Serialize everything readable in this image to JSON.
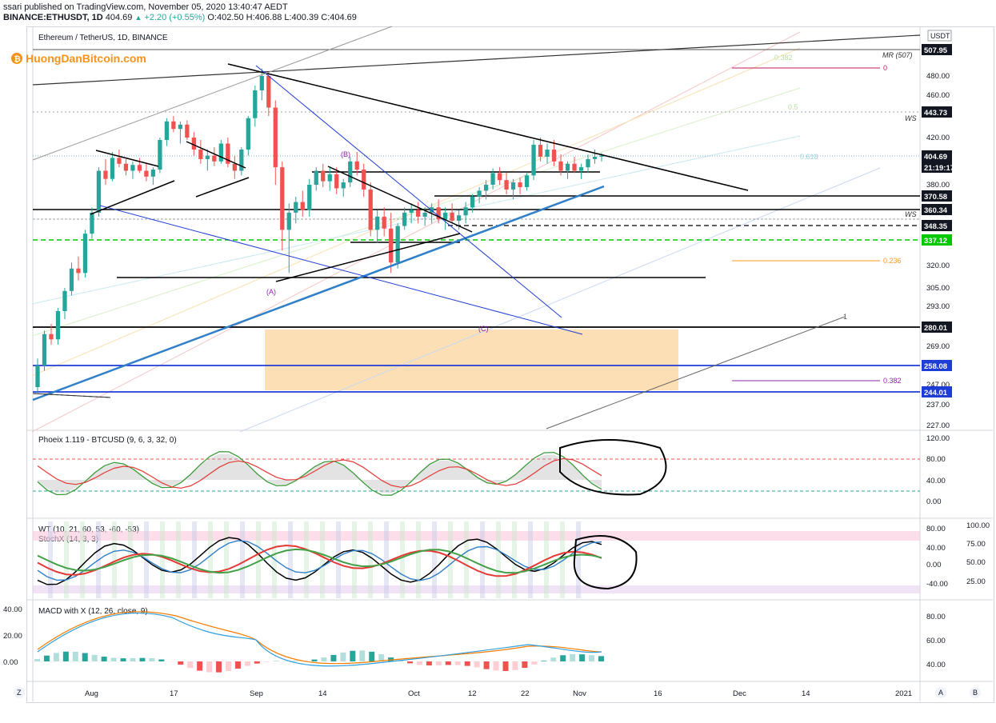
{
  "header": {
    "publisher_line": "ssari published on TradingView.com, November 05, 2020 13:40:47 AEDT",
    "symbol": "BINANCE:ETHUSDT, 1D",
    "last": "404.69",
    "change": "+2.20 (+0.55%)",
    "ohlc": "O:402.50 H:406.88 L:400.39 C:404.69"
  },
  "chart_title": "Ethereum / TetherUS, 1D, BINANCE",
  "logo": "HuongDanBitcoin.com",
  "currency": "USDT",
  "colors": {
    "up": "#26a69a",
    "down": "#ef5350",
    "blue": "#1e3cd6",
    "orange_zone": "#fcd9a8",
    "trend_blue": "#2f7fc9",
    "green_dash": "#00c800"
  },
  "chart_data": {
    "type": "candlestick",
    "title": "Ethereum / TetherUS, 1D, BINANCE",
    "x_labels": [
      "Aug",
      "17",
      "Sep",
      "14",
      "Oct",
      "12",
      "22",
      "Nov",
      "16",
      "Dec",
      "14",
      "2021"
    ],
    "y_ticks": [
      "480.00",
      "460.00",
      "420.00",
      "380.00",
      "320.00",
      "305.00",
      "293.00",
      "269.00",
      "247.00",
      "237.00",
      "227.00"
    ],
    "price_tags": [
      {
        "label": "507.95",
        "kind": "dark"
      },
      {
        "label": "443.73",
        "kind": "dark"
      },
      {
        "label": "404.69",
        "kind": "dark"
      },
      {
        "label": "21:19:17",
        "kind": "dark"
      },
      {
        "label": "370.58",
        "kind": "dark"
      },
      {
        "label": "360.34",
        "kind": "dark"
      },
      {
        "label": "348.35",
        "kind": "dark"
      },
      {
        "label": "337.12",
        "kind": "green"
      },
      {
        "label": "280.01",
        "kind": "dark"
      },
      {
        "label": "258.08",
        "kind": "blue"
      },
      {
        "label": "244.01",
        "kind": "blue"
      }
    ],
    "annotations": [
      "MR (507)",
      "WS",
      "WS",
      "0",
      "0.382",
      "0.5",
      "0.618",
      "0.236",
      "0.382",
      "1",
      "(A)",
      "(B)",
      "(C)"
    ],
    "candles": [
      [
        246,
        262,
        243,
        258
      ],
      [
        258,
        278,
        255,
        276
      ],
      [
        276,
        282,
        270,
        273
      ],
      [
        273,
        292,
        270,
        290
      ],
      [
        290,
        305,
        285,
        303
      ],
      [
        303,
        322,
        300,
        318
      ],
      [
        318,
        326,
        310,
        315
      ],
      [
        315,
        345,
        312,
        342
      ],
      [
        342,
        362,
        338,
        358
      ],
      [
        358,
        395,
        355,
        392
      ],
      [
        392,
        402,
        380,
        385
      ],
      [
        385,
        408,
        383,
        403
      ],
      [
        403,
        410,
        395,
        398
      ],
      [
        398,
        402,
        388,
        392
      ],
      [
        392,
        400,
        385,
        397
      ],
      [
        397,
        403,
        390,
        392
      ],
      [
        392,
        398,
        383,
        387
      ],
      [
        387,
        395,
        380,
        393
      ],
      [
        393,
        420,
        390,
        418
      ],
      [
        418,
        438,
        413,
        435
      ],
      [
        435,
        440,
        425,
        428
      ],
      [
        428,
        435,
        415,
        432
      ],
      [
        432,
        436,
        418,
        420
      ],
      [
        420,
        425,
        405,
        410
      ],
      [
        410,
        418,
        398,
        402
      ],
      [
        402,
        410,
        392,
        405
      ],
      [
        405,
        412,
        396,
        400
      ],
      [
        400,
        418,
        398,
        415
      ],
      [
        415,
        420,
        395,
        398
      ],
      [
        398,
        405,
        385,
        392
      ],
      [
        392,
        412,
        388,
        410
      ],
      [
        410,
        440,
        405,
        438
      ],
      [
        438,
        470,
        430,
        465
      ],
      [
        465,
        488,
        455,
        480
      ],
      [
        480,
        485,
        440,
        448
      ],
      [
        448,
        455,
        380,
        395
      ],
      [
        395,
        400,
        330,
        345
      ],
      [
        345,
        365,
        315,
        358
      ],
      [
        358,
        370,
        350,
        366
      ],
      [
        366,
        375,
        355,
        360
      ],
      [
        360,
        385,
        355,
        380
      ],
      [
        380,
        395,
        375,
        392
      ],
      [
        392,
        398,
        378,
        383
      ],
      [
        383,
        395,
        375,
        389
      ],
      [
        389,
        395,
        372,
        377
      ],
      [
        377,
        385,
        370,
        382
      ],
      [
        382,
        404,
        378,
        400
      ],
      [
        400,
        408,
        388,
        393
      ],
      [
        393,
        398,
        370,
        376
      ],
      [
        376,
        382,
        340,
        345
      ],
      [
        345,
        360,
        335,
        355
      ],
      [
        355,
        362,
        340,
        346
      ],
      [
        346,
        358,
        315,
        322
      ],
      [
        322,
        350,
        318,
        348
      ],
      [
        348,
        362,
        345,
        358
      ],
      [
        358,
        365,
        350,
        360
      ],
      [
        360,
        366,
        350,
        355
      ],
      [
        355,
        362,
        348,
        358
      ],
      [
        358,
        365,
        350,
        362
      ],
      [
        362,
        368,
        350,
        353
      ],
      [
        353,
        362,
        345,
        358
      ],
      [
        358,
        365,
        350,
        352
      ],
      [
        352,
        360,
        345,
        356
      ],
      [
        356,
        366,
        350,
        362
      ],
      [
        362,
        372,
        358,
        370
      ],
      [
        370,
        378,
        365,
        375
      ],
      [
        375,
        384,
        368,
        380
      ],
      [
        380,
        394,
        376,
        390
      ],
      [
        390,
        395,
        380,
        384
      ],
      [
        384,
        390,
        372,
        376
      ],
      [
        376,
        385,
        368,
        382
      ],
      [
        382,
        386,
        372,
        378
      ],
      [
        378,
        390,
        375,
        388
      ],
      [
        388,
        418,
        384,
        414
      ],
      [
        414,
        420,
        400,
        404
      ],
      [
        404,
        415,
        398,
        410
      ],
      [
        410,
        418,
        396,
        400
      ],
      [
        400,
        406,
        388,
        392
      ],
      [
        392,
        400,
        385,
        398
      ],
      [
        398,
        404,
        390,
        392
      ],
      [
        392,
        398,
        385,
        395
      ],
      [
        395,
        406,
        390,
        402
      ],
      [
        402,
        410,
        398,
        404
      ],
      [
        404,
        407,
        400,
        405
      ]
    ],
    "indicators": [
      {
        "name": "Phoeix 1.119 - BTCUSD (9, 6, 3, 32, 0)",
        "scale": [
          "120.00",
          "80.00",
          "40.00",
          "0.00"
        ]
      },
      {
        "name": "WT (10, 21, 60, 53, -60, -53)",
        "sub": "StochX (14, 3, 3)",
        "scale": [
          "80.00",
          "40.00",
          "0.00",
          "-40.00"
        ],
        "scale_right": [
          "100.00",
          "75.00",
          "50.00",
          "25.00"
        ]
      },
      {
        "name": "MACD with X (12, 26, close, 9)",
        "scale": [
          "80.00",
          "60.00",
          "40.00"
        ],
        "scale_left": [
          "40.00",
          "20.00",
          "0.00"
        ]
      }
    ],
    "bottom_icons": [
      "Z",
      "A",
      "B"
    ]
  }
}
